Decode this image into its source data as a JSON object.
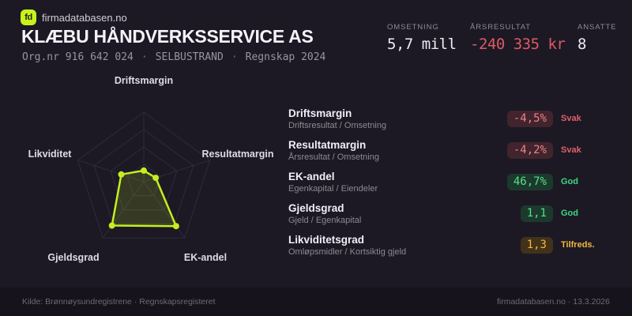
{
  "brand": {
    "logo_text": "fd",
    "name": "firmadatabasen.no"
  },
  "header": {
    "title": "KLÆBU HÅNDVERKSSERVICE AS",
    "org_number": "Org.nr 916 642 024",
    "separator": "·",
    "location": "SELBUSTRAND",
    "report_period": "Regnskap 2024"
  },
  "stats": [
    {
      "label": "OMSETNING",
      "value": "5,7 mill",
      "tone": "pos"
    },
    {
      "label": "ÅRSRESULTAT",
      "value": "-240 335 kr",
      "tone": "neg"
    },
    {
      "label": "ANSATTE",
      "value": "8",
      "tone": "pos"
    }
  ],
  "chart_data": {
    "type": "radar",
    "axes": [
      "Driftsmargin",
      "Resultatmargin",
      "EK-andel",
      "Gjeldsgrad",
      "Likviditet"
    ],
    "values_fraction": [
      0.16,
      0.18,
      0.79,
      0.78,
      0.34
    ],
    "rings": [
      0.25,
      0.5,
      0.75,
      1
    ],
    "legend": "none",
    "stroke_color": "#c3ef1f",
    "fill_color": "rgba(195,239,31,0.16)",
    "grid_color": "#2e2b3c",
    "dot_radius": 4
  },
  "metrics": [
    {
      "name": "Driftsmargin",
      "formula": "Driftsresultat / Omsetning",
      "value": "-4,5%",
      "rating": "Svak",
      "status": "bad"
    },
    {
      "name": "Resultatmargin",
      "formula": "Årsresultat / Omsetning",
      "value": "-4,2%",
      "rating": "Svak",
      "status": "bad"
    },
    {
      "name": "EK-andel",
      "formula": "Egenkapital / Eiendeler",
      "value": "46,7%",
      "rating": "God",
      "status": "good"
    },
    {
      "name": "Gjeldsgrad",
      "formula": "Gjeld / Egenkapital",
      "value": "1,1",
      "rating": "God",
      "status": "good"
    },
    {
      "name": "Likviditetsgrad",
      "formula": "Omløpsmidler / Kortsiktig gjeld",
      "value": "1,3",
      "rating": "Tilfreds.",
      "status": "warn"
    }
  ],
  "footer": {
    "source": "Kilde: Brønnøysundregistrene · Regnskapsregisteret",
    "site_and_date": "firmadatabasen.no · 13.3.2026"
  },
  "colors": {
    "accent_lime": "#c8f21d",
    "negative_red": "#dd5a62",
    "good_green": "#3cda81",
    "warn_amber": "#f2b73b",
    "background": "#1c1925"
  }
}
